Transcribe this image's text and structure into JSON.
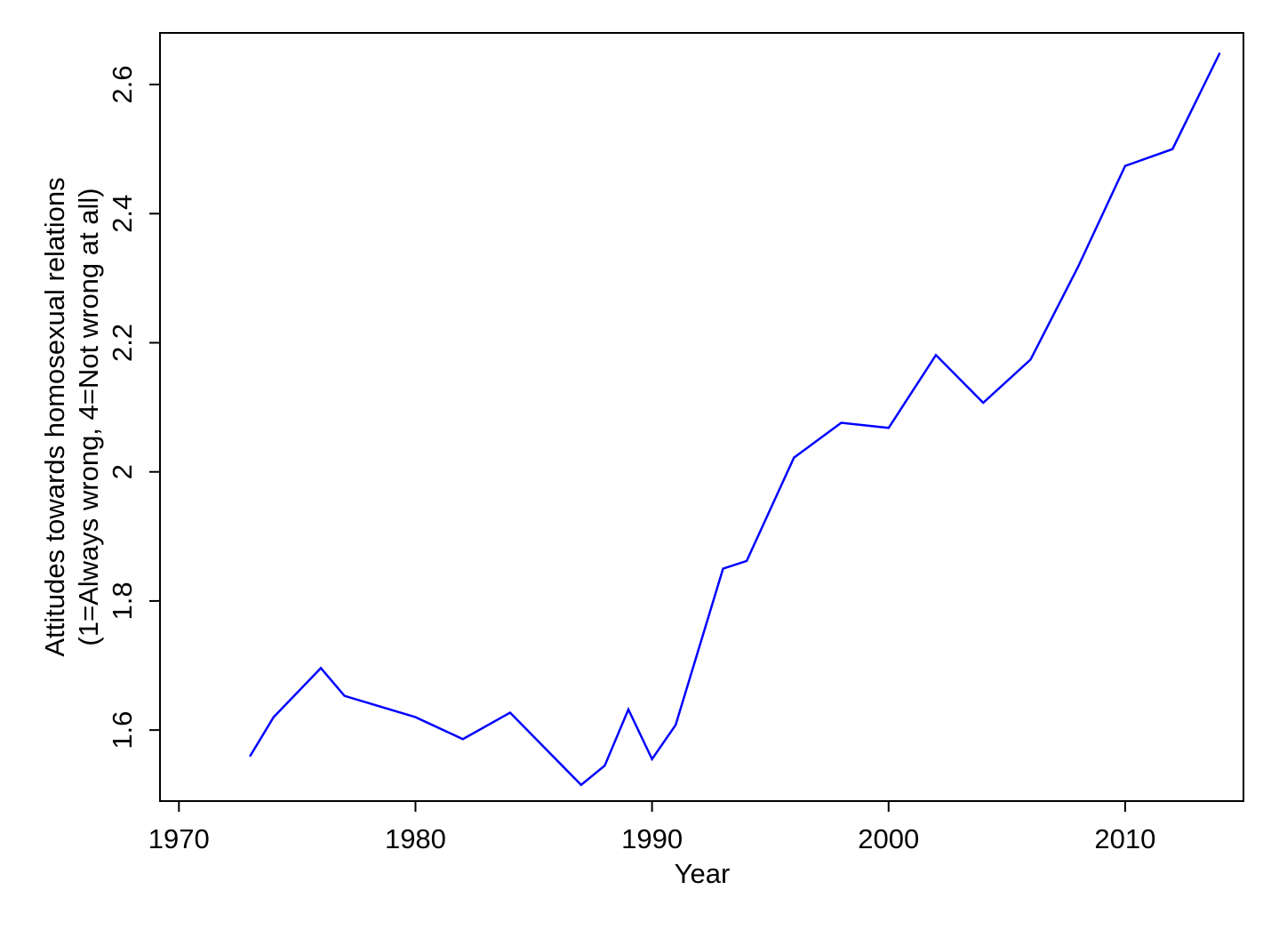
{
  "chart_data": {
    "type": "line",
    "title": "",
    "xlabel": "Year",
    "ylabel_lines": [
      "Attitudes towards homosexual relations",
      "(1=Always wrong, 4=Not wrong at all)"
    ],
    "xlim": [
      1969.2,
      2015
    ],
    "ylim": [
      1.49,
      2.68
    ],
    "x_ticks": [
      1970,
      1980,
      1990,
      2000,
      2010
    ],
    "x_tick_labels": [
      "1970",
      "1980",
      "1990",
      "2000",
      "2010"
    ],
    "y_ticks": [
      1.6,
      1.8,
      2.0,
      2.2,
      2.4,
      2.6
    ],
    "y_tick_labels": [
      "1.6",
      "1.8",
      "2",
      "2.2",
      "2.4",
      "2.6"
    ],
    "grid": false,
    "series": [
      {
        "color": "#0000ff",
        "x": [
          1973,
          1974,
          1976,
          1977,
          1980,
          1982,
          1984,
          1987,
          1988,
          1989,
          1990,
          1991,
          1993,
          1994,
          1996,
          1998,
          2000,
          2002,
          2004,
          2006,
          2008,
          2010,
          2012,
          2014
        ],
        "y": [
          1.559,
          1.62,
          1.696,
          1.653,
          1.62,
          1.586,
          1.627,
          1.515,
          1.545,
          1.632,
          1.555,
          1.608,
          1.85,
          1.862,
          2.022,
          2.076,
          2.068,
          2.181,
          2.107,
          2.174,
          2.317,
          2.474,
          2.5,
          2.649
        ]
      }
    ]
  }
}
